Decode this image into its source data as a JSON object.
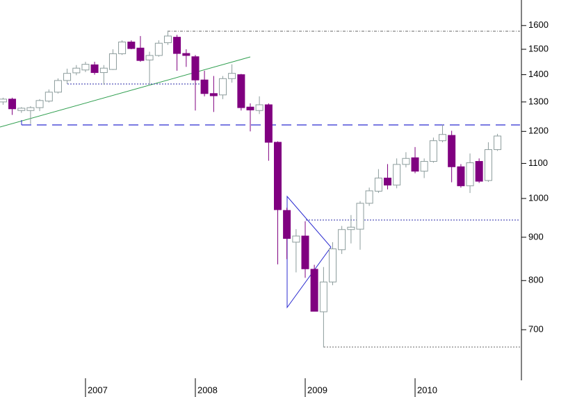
{
  "chart_data": {
    "type": "candlestick",
    "x": [
      2006.25,
      2006.333,
      2006.417,
      2006.5,
      2006.583,
      2006.667,
      2006.75,
      2006.833,
      2006.917,
      2007,
      2007.083,
      2007.167,
      2007.25,
      2007.333,
      2007.417,
      2007.5,
      2007.583,
      2007.667,
      2007.75,
      2007.833,
      2007.917,
      2008,
      2008.083,
      2008.167,
      2008.25,
      2008.333,
      2008.417,
      2008.5,
      2008.583,
      2008.667,
      2008.75,
      2008.833,
      2008.917,
      2009,
      2009.083,
      2009.167,
      2009.25,
      2009.333,
      2009.417,
      2009.5,
      2009.583,
      2009.667,
      2009.75,
      2009.833,
      2009.917,
      2010,
      2010.083,
      2010.167,
      2010.25,
      2010.333,
      2010.417,
      2010.5,
      2010.583,
      2010.667,
      2010.75
    ],
    "open": [
      1300,
      1310,
      1270,
      1270,
      1280,
      1303,
      1335,
      1378,
      1407,
      1418,
      1438,
      1408,
      1420,
      1482,
      1530,
      1505,
      1457,
      1475,
      1527,
      1550,
      1483,
      1470,
      1380,
      1330,
      1325,
      1385,
      1400,
      1282,
      1270,
      1290,
      1165,
      968,
      888,
      903,
      825,
      735,
      797,
      870,
      919,
      920,
      987,
      1020,
      1057,
      1037,
      1097,
      1117,
      1077,
      1106,
      1170,
      1187,
      1090,
      1035,
      1106,
      1050,
      1142
    ],
    "high": [
      1315,
      1315,
      1282,
      1285,
      1310,
      1345,
      1386,
      1423,
      1437,
      1450,
      1450,
      1437,
      1500,
      1537,
      1537,
      1555,
      1490,
      1537,
      1578,
      1560,
      1500,
      1477,
      1415,
      1395,
      1395,
      1440,
      1403,
      1295,
      1320,
      1295,
      1168,
      975,
      920,
      940,
      835,
      830,
      888,
      928,
      956,
      993,
      1030,
      1083,
      1098,
      1115,
      1134,
      1150,
      1115,
      1180,
      1222,
      1202,
      1098,
      1130,
      1115,
      1165,
      1192
    ],
    "low": [
      1290,
      1255,
      1262,
      1224,
      1268,
      1298,
      1330,
      1365,
      1398,
      1410,
      1400,
      1362,
      1418,
      1477,
      1500,
      1450,
      1363,
      1470,
      1518,
      1415,
      1430,
      1270,
      1320,
      1265,
      1310,
      1370,
      1270,
      1200,
      1258,
      1108,
      836,
      848,
      818,
      806,
      736,
      667,
      790,
      860,
      885,
      870,
      980,
      1015,
      1025,
      1028,
      1088,
      1071,
      1057,
      1102,
      1165,
      1045,
      1030,
      1015,
      1043,
      1046,
      1138
    ],
    "close": [
      1310,
      1276,
      1278,
      1280,
      1305,
      1335,
      1378,
      1405,
      1425,
      1440,
      1408,
      1425,
      1482,
      1530,
      1503,
      1455,
      1475,
      1525,
      1555,
      1483,
      1475,
      1380,
      1330,
      1322,
      1385,
      1405,
      1280,
      1272,
      1290,
      1165,
      970,
      897,
      903,
      826,
      736,
      797,
      872,
      919,
      925,
      987,
      1021,
      1057,
      1037,
      1097,
      1115,
      1077,
      1106,
      1170,
      1190,
      1090,
      1035,
      1102,
      1048,
      1142,
      1185
    ],
    "up_color": "#ffffff",
    "up_edge_color": "#8c9c9c",
    "down_color": "#800080",
    "xlim": [
      2006.222,
      2010.968
    ],
    "xticks": [
      {
        "value": 2007,
        "label": "2007"
      },
      {
        "value": 2008,
        "label": "2008"
      },
      {
        "value": 2009,
        "label": "2009"
      },
      {
        "value": 2010,
        "label": "2010"
      }
    ],
    "ylim": [
      610,
      1715
    ],
    "log_scale": true,
    "yticks": [
      700,
      800,
      900,
      1000,
      1100,
      1200,
      1300,
      1400,
      1500,
      1600
    ]
  }
}
